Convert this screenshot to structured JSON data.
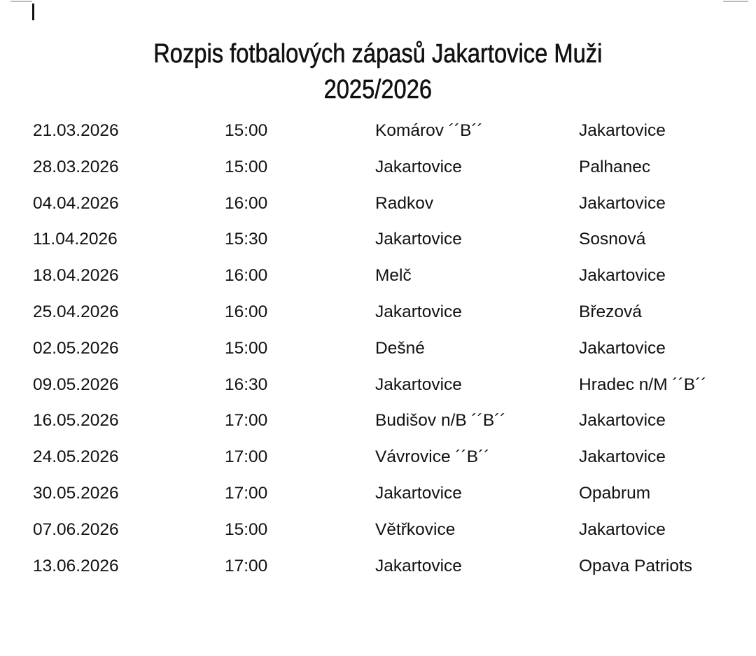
{
  "document": {
    "title_line1": "Rozpis fotbalových zápasů Jakartovice Muži",
    "title_line2": "2025/2026"
  },
  "matches": [
    {
      "date": "21.03.2026",
      "time": "15:00",
      "home": "Komárov ´´B´´",
      "away": "Jakartovice"
    },
    {
      "date": "28.03.2026",
      "time": "15:00",
      "home": "Jakartovice",
      "away": "Palhanec"
    },
    {
      "date": "04.04.2026",
      "time": "16:00",
      "home": "Radkov",
      "away": "Jakartovice"
    },
    {
      "date": "11.04.2026",
      "time": "15:30",
      "home": "Jakartovice",
      "away": "Sosnová"
    },
    {
      "date": "18.04.2026",
      "time": "16:00",
      "home": "Melč",
      "away": "Jakartovice"
    },
    {
      "date": "25.04.2026",
      "time": "16:00",
      "home": "Jakartovice",
      "away": "Březová"
    },
    {
      "date": "02.05.2026",
      "time": "15:00",
      "home": "Dešné",
      "away": "Jakartovice"
    },
    {
      "date": "09.05.2026",
      "time": "16:30",
      "home": "Jakartovice",
      "away": "Hradec n/M ´´B´´"
    },
    {
      "date": "16.05.2026",
      "time": "17:00",
      "home": "Budišov n/B ´´B´´",
      "away": "Jakartovice"
    },
    {
      "date": "24.05.2026",
      "time": "17:00",
      "home": "Vávrovice ´´B´´",
      "away": "Jakartovice"
    },
    {
      "date": "30.05.2026",
      "time": "17:00",
      "home": "Jakartovice",
      "away": "Opabrum"
    },
    {
      "date": "07.06.2026",
      "time": "15:00",
      "home": "Větřkovice",
      "away": "Jakartovice"
    },
    {
      "date": "13.06.2026",
      "time": "17:00",
      "home": "Jakartovice",
      "away": "Opava Patriots"
    }
  ]
}
